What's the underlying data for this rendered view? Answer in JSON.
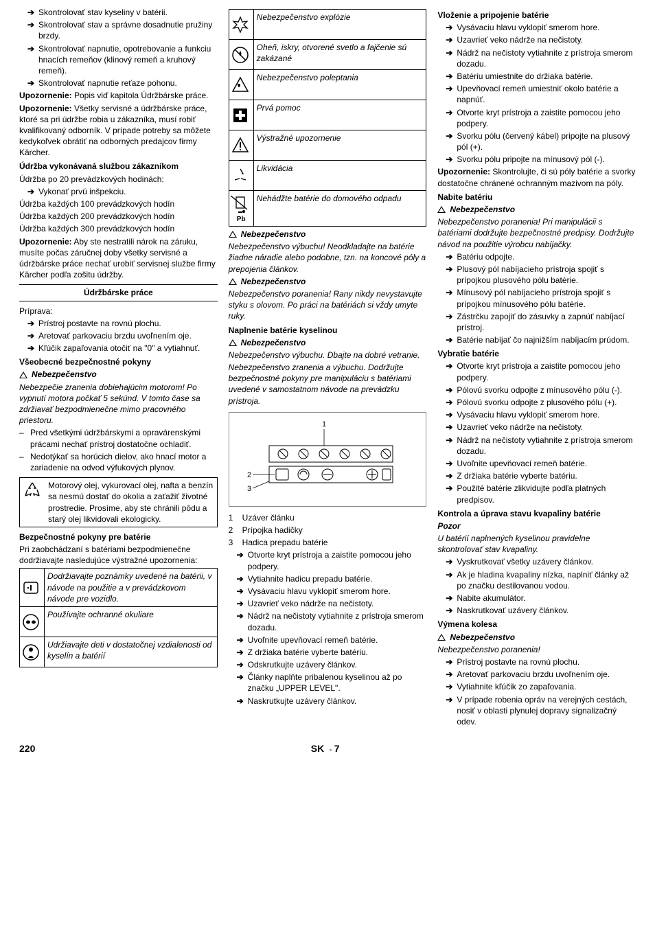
{
  "col1": {
    "bullets_top": [
      "Skontrolovať stav kyseliny v batérii.",
      "Skontrolovať stav a správne dosadnutie pružiny brzdy.",
      "Skontrolovať napnutie, opotrebovanie a funkciu hnacích remeňov (klinový remeň a kruhový remeň).",
      "Skontrolovať napnutie reťaze pohonu."
    ],
    "upo1_label": "Upozornenie:",
    "upo1_text": " Popis viď kapitola Údržbárske práce.",
    "upo2_label": "Upozornenie:",
    "upo2_text": " Všetky servisné a údržbárske práce, ktoré sa pri údržbe robia u zákazníka, musí robiť kvalifikovaný odborník. V prípade potreby sa môžete kedykoľvek obrátiť na odborných predajcov firmy Kärcher.",
    "h_udrzba_sluzba": "Údržba vykonávaná službou zákazníkom",
    "line_20h": "Údržba po 20 prevádzkových hodinách:",
    "bullet_prvu": "Vykonať prvú inšpekciu.",
    "line_100h": "Údržba každých 100 prevádzkových hodín",
    "line_200h": "Údržba každých 200 prevádzkových hodín",
    "line_300h": "Údržba každých 300 prevádzkových hodín",
    "upo3_label": "Upozornenie:",
    "upo3_text": " Aby ste nestratili nárok na záruku, musíte počas záručnej doby všetky servisné a údržbárske práce nechať urobiť servisnej službe firmy Kärcher podľa zošitu údržby.",
    "h_udrzbarske": "Údržbárske práce",
    "priprava": "Príprava:",
    "prep_bullets": [
      "Prístroj postavte na rovnú plochu.",
      "Aretovať parkovaciu brzdu uvoľnením oje.",
      "Kľúčik zapaľovania otočiť na \"0\" a vytiahnuť."
    ],
    "h_vseo": "Všeobecné bezpečnostné pokyny",
    "nebez_label": "Nebezpečenstvo",
    "nebez_italic": "Nebezpečie zranenia dobiehajúcim motorom! Po vypnutí motora počkať 5 sekúnd. V tomto čase sa zdržiavať bezpodmienečne mimo pracovného priestoru.",
    "dash_bullets": [
      "Pred všetkými údržbárskymi a opravárenskými prácami nechať prístroj dostatočne ochladiť.",
      "Nedotýkať sa horúcich dielov, ako hnací motor a zariadenie na odvod výfukových plynov."
    ],
    "env_text": "Motorový olej, vykurovací olej, nafta a benzín sa nesmú dostať do okolia a zaťažiť životné prostredie. Prosíme, aby ste chránili pôdu a starý olej likvidovali ekologicky.",
    "h_bezp_bat": "Bezpečnostné pokyny pre batérie",
    "bezp_bat_intro": "Pri zaobchádzaní s batériami bezpodmienečne dodržiavajte nasledujúce výstražné upozornenia:",
    "icons_a": [
      {
        "text": "Dodržiavajte poznámky uvedené na batérii, v návode na použitie a v prevádzkovom návode pre vozidlo."
      },
      {
        "text": "Používajte ochranné okuliare"
      },
      {
        "text": "Udržiavajte deti v dostatočnej vzdialenosti od kyselín a batérií"
      }
    ]
  },
  "col2": {
    "icons_b": [
      {
        "text": "Nebezpečenstvo explózie"
      },
      {
        "text": "Oheň, iskry, otvorené svetlo a fajčenie sú zakázané"
      },
      {
        "text": "Nebezpečenstvo poleptania"
      },
      {
        "text": "Prvá pomoc"
      },
      {
        "text": "Výstražné upozornenie"
      },
      {
        "text": "Likvidácia"
      },
      {
        "text": "Nehádžte batérie do domového odpadu"
      }
    ],
    "pb": "Pb",
    "nebez_label": "Nebezpečenstvo",
    "nebez1": "Nebezpečenstvo výbuchu! Neodkladajte na batérie žiadne náradie alebo podobne, tzn. na koncové póly a prepojenia článkov.",
    "nebez2": "Nebezpečenstvo poranenia! Rany nikdy nevystavujte styku s olovom. Po práci na batériách si vždy umyte ruky.",
    "h_napln": "Naplnenie batérie kyselinou",
    "nebez3a": "Nebezpečenstvo výbuchu. Dbajte na dobré vetranie.",
    "nebez3b": "Nebezpečenstvo zranenia a výbuchu. Dodržujte bezpečnostné pokyny pre manipuláciu s batériami uvedené v samostatnom návode na prevádzku prístroja.",
    "legend": [
      "Uzáver článku",
      "Prípojka hadičky",
      "Hadica prepadu batérie"
    ],
    "bullets_bottom": [
      "Otvorte kryt prístroja a zaistite pomocou jeho podpery.",
      "Vytiahnite hadicu prepadu batérie.",
      "Vysávaciu hlavu vyklopiť smerom hore.",
      "Uzavrieť veko nádrže na nečistoty.",
      "Nádrž na nečistoty vytiahnite z prístroja smerom dozadu.",
      "Uvoľnite upevňovací remeň batérie.",
      "Z držiaka batérie vyberte batériu.",
      "Odskrutkujte uzávery článkov.",
      "Články naplňte pribalenou kyselinou až po značku „UPPER LEVEL\".",
      "Naskrutkujte uzávery článkov."
    ]
  },
  "col3": {
    "h_vlozenie": "Vloženie a pripojenie batérie",
    "vlo_bullets": [
      "Vysávaciu hlavu vyklopiť smerom hore.",
      "Uzavrieť veko nádrže na nečistoty.",
      "Nádrž na nečistoty vytiahnite z prístroja smerom dozadu.",
      "Batériu umiestnite do držiaka batérie.",
      "Upevňovací remeň umiestniť okolo batérie a napnúť.",
      "Otvorte kryt prístroja a zaistite pomocou jeho podpery.",
      "Svorku pólu (červený kábel) pripojte na plusový pól (+).",
      "Svorku pólu pripojte na mínusový pól (-)."
    ],
    "upo_label": "Upozornenie:",
    "upo_text": " Skontrolujte, či sú póly batérie a svorky dostatočne chránené ochranným mazivom na póly.",
    "h_nabite": "Nabite batériu",
    "nebez_label": "Nebezpečenstvo",
    "nabite_nebez": "Nebezpečenstvo poranenia! Pri manipulácii s batériami dodržujte bezpečnostné predpisy. Dodržujte návod na použitie výrobcu nabíjačky.",
    "nabite_bullets": [
      "Batériu odpojte.",
      "Plusový pól nabíjacieho prístroja spojiť s prípojkou plusového pólu batérie.",
      "Mínusový pól nabíjacieho prístroja spojiť s prípojkou mínusového pólu batérie.",
      "Zástrčku zapojiť do zásuvky a zapnúť nabíjací prístroj.",
      "Batérie nabíjať čo najnižším nabíjacím prúdom."
    ],
    "h_vybratie": "Vybratie batérie",
    "vyb_bullets": [
      "Otvorte kryt prístroja a zaistite pomocou jeho podpery.",
      "Pólovú svorku odpojte z mínusového pólu (-).",
      "Pólovú svorku odpojte z plusového pólu (+).",
      "Vysávaciu hlavu vyklopiť smerom hore.",
      "Uzavrieť veko nádrže na nečistoty.",
      "Nádrž na nečistoty vytiahnite z prístroja smerom dozadu.",
      "Uvoľnite upevňovací remeň batérie.",
      "Z držiaka batérie vyberte batériu.",
      "Použité batérie zlikvidujte podľa platných predpisov."
    ],
    "h_kontrola": "Kontrola a úprava stavu kvapaliny batérie",
    "pozor": "Pozor",
    "pozor_text": "U batérií naplnených kyselinou pravidelne skontrolovať stav kvapaliny.",
    "kontrola_bullets": [
      "Vyskrutkovať všetky uzávery článkov.",
      "Ak je hladina kvapaliny nízka, naplniť články až po značku destilovanou vodou.",
      "Nabite akumulátor.",
      "Naskrutkovať uzávery článkov."
    ],
    "h_vymena": "Výmena kolesa",
    "vymena_nebez": "Nebezpečenstvo poranenia!",
    "vymena_bullets": [
      "Prístroj postavte na rovnú plochu.",
      "Aretovať parkovaciu brzdu uvoľnením oje.",
      "Vytiahnite kľúčik zo zapaľovania.",
      "V prípade robenia opráv na verejných cestách, nosiť v oblasti plynulej dopravy signalizačný odev."
    ]
  },
  "footer": {
    "page": "220",
    "lang": "SK",
    "dash": "-",
    "sub": "7"
  }
}
